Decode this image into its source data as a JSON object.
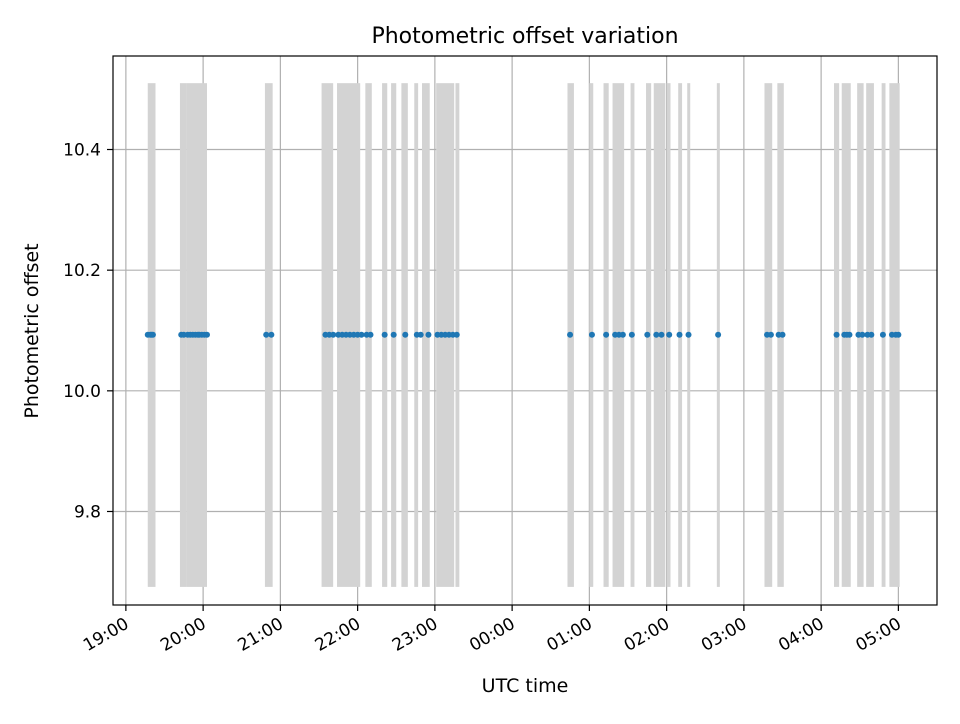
{
  "chart_data": {
    "type": "scatter",
    "title": "Photometric offset variation",
    "xlabel": "UTC time",
    "ylabel": "Photometric offset",
    "x_unit": "UTC time (HH:MM)",
    "xlim": [
      "18:50",
      "05:30"
    ],
    "ylim": [
      9.645,
      10.555
    ],
    "y_ticks": [
      9.8,
      10.0,
      10.2,
      10.4
    ],
    "y_tick_labels": [
      "9.8",
      "10.0",
      "10.2",
      "10.4"
    ],
    "x_ticks": [
      "19:00",
      "20:00",
      "21:00",
      "22:00",
      "23:00",
      "00:00",
      "01:00",
      "02:00",
      "03:00",
      "04:00",
      "05:00"
    ],
    "x_tick_labels": [
      "19:00",
      "20:00",
      "21:00",
      "22:00",
      "23:00",
      "00:00",
      "01:00",
      "02:00",
      "03:00",
      "04:00",
      "05:00"
    ],
    "grid": true,
    "legend": "none",
    "band_range": [
      9.675,
      10.51
    ],
    "bands": [
      [
        "19:17",
        "19:23"
      ],
      [
        "19:42",
        "19:47"
      ],
      [
        "19:47",
        "20:03"
      ],
      [
        "20:48",
        "20:54"
      ],
      [
        "21:32",
        "21:41"
      ],
      [
        "21:44",
        "22:02"
      ],
      [
        "22:06",
        "22:11"
      ],
      [
        "22:19",
        "22:23"
      ],
      [
        "22:26",
        "22:30"
      ],
      [
        "22:34",
        "22:39"
      ],
      [
        "22:44",
        "22:47"
      ],
      [
        "22:50",
        "22:56"
      ],
      [
        "23:01",
        "23:15"
      ],
      [
        "23:16",
        "23:19"
      ],
      [
        "00:43",
        "00:48"
      ],
      [
        "01:00",
        "01:03"
      ],
      [
        "01:11",
        "01:15"
      ],
      [
        "01:18",
        "01:27"
      ],
      [
        "01:32",
        "01:35"
      ],
      [
        "01:44",
        "01:48"
      ],
      [
        "01:50",
        "01:59"
      ],
      [
        "02:00",
        "02:03"
      ],
      [
        "02:09",
        "02:12"
      ],
      [
        "02:16",
        "02:18"
      ],
      [
        "02:39",
        "02:41"
      ],
      [
        "03:16",
        "03:22"
      ],
      [
        "03:26",
        "03:31"
      ],
      [
        "04:10",
        "04:14"
      ],
      [
        "04:16",
        "04:23"
      ],
      [
        "04:28",
        "04:33"
      ],
      [
        "04:35",
        "04:41"
      ],
      [
        "04:47",
        "04:50"
      ],
      [
        "04:53",
        "05:01"
      ]
    ],
    "series": [
      {
        "color": "#1f77b4",
        "y": 10.093,
        "x": [
          "19:17",
          "19:19",
          "19:20",
          "19:21",
          "19:43",
          "19:45",
          "19:48",
          "19:50",
          "19:52",
          "19:54",
          "19:56",
          "19:57",
          "19:59",
          "20:01",
          "20:03",
          "20:49",
          "20:53",
          "21:35",
          "21:38",
          "21:41",
          "21:45",
          "21:48",
          "21:51",
          "21:54",
          "21:57",
          "22:00",
          "22:03",
          "22:07",
          "22:10",
          "22:21",
          "22:28",
          "22:37",
          "22:46",
          "22:49",
          "22:55",
          "23:02",
          "23:05",
          "23:08",
          "23:11",
          "23:14",
          "23:17",
          "00:45",
          "01:02",
          "01:13",
          "01:20",
          "01:23",
          "01:26",
          "01:33",
          "01:45",
          "01:52",
          "01:56",
          "02:02",
          "02:10",
          "02:17",
          "02:40",
          "03:18",
          "03:21",
          "03:27",
          "03:30",
          "04:12",
          "04:18",
          "04:20",
          "04:22",
          "04:29",
          "04:32",
          "04:36",
          "04:39",
          "04:48",
          "04:55",
          "04:58",
          "05:00"
        ]
      }
    ]
  }
}
